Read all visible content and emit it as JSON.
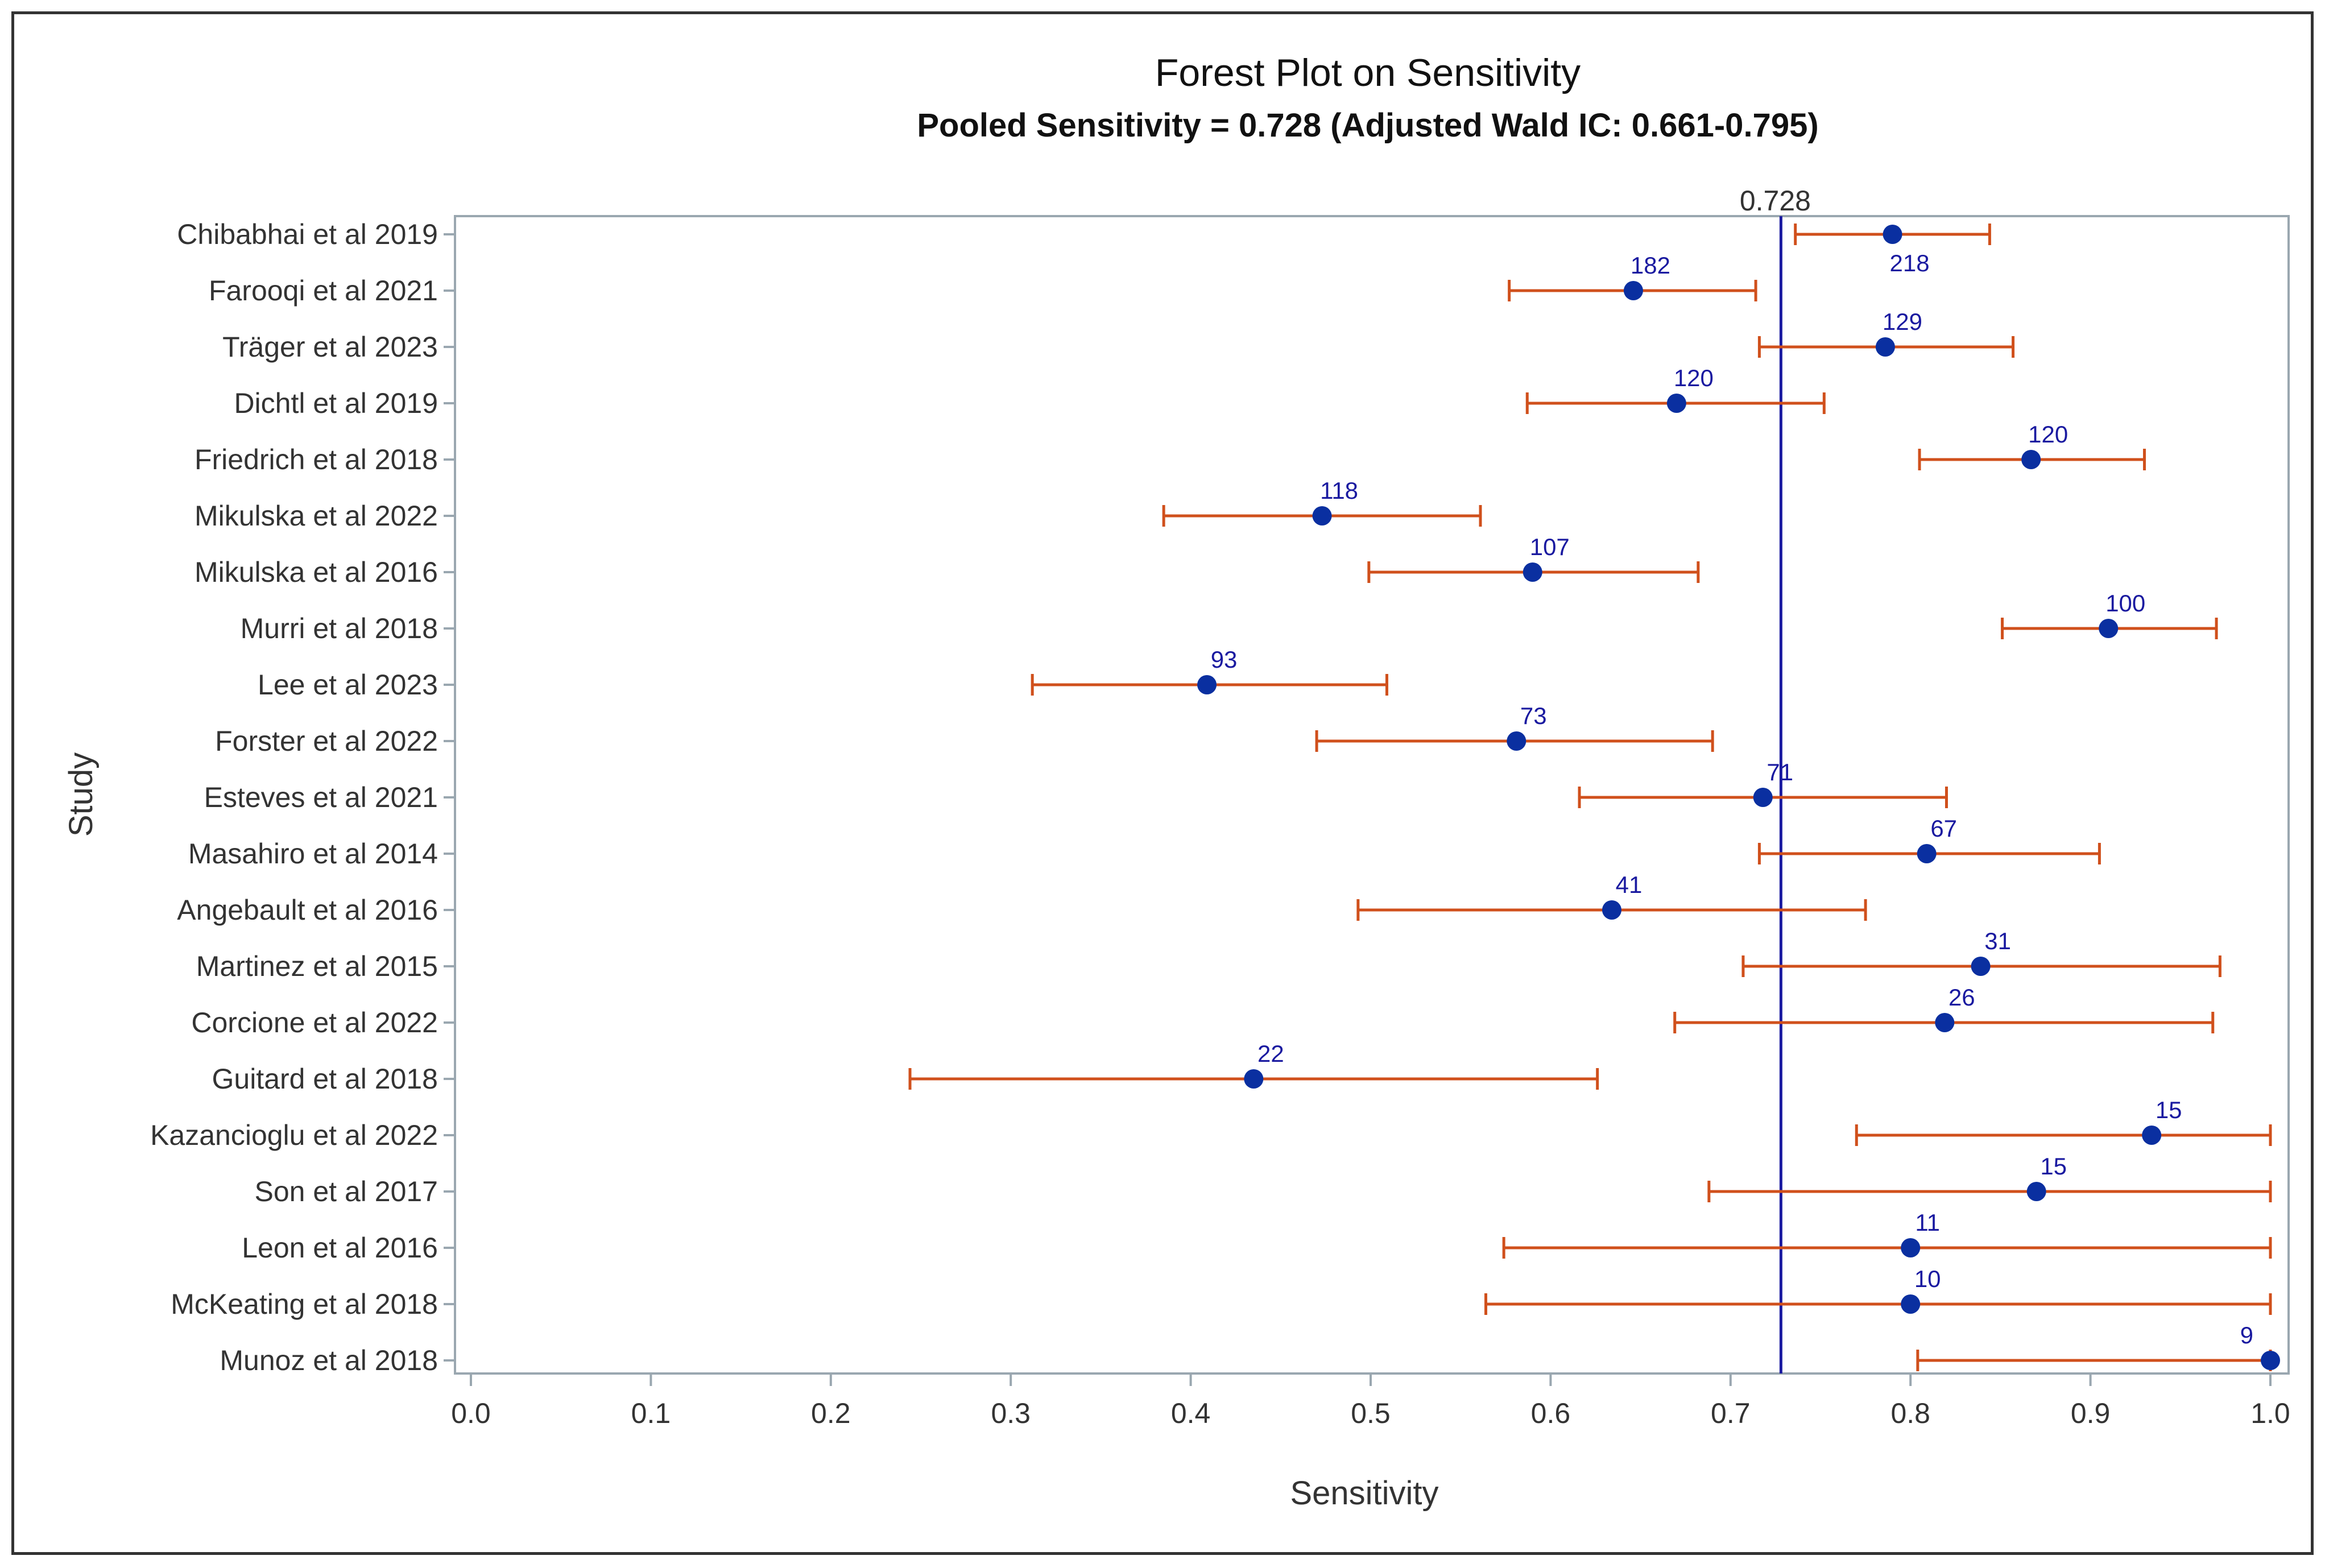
{
  "chart_data": {
    "type": "forest",
    "title": "Forest Plot on Sensitivity",
    "subtitle": "Pooled Sensitivity = 0.728 (Adjusted Wald IC: 0.661-0.795)",
    "xlabel": "Sensitivity",
    "ylabel": "Study",
    "xlim": [
      0.0,
      1.0
    ],
    "xticks": [
      "0.0",
      "0.1",
      "0.2",
      "0.3",
      "0.4",
      "0.5",
      "0.6",
      "0.7",
      "0.8",
      "0.9",
      "1.0"
    ],
    "reference_value": 0.728,
    "reference_label": "0.728",
    "colors": {
      "point": "#0a2fa0",
      "ci": "#d0501c",
      "reference": "#1a1aa0",
      "label": "#1a1aa0",
      "axis": "#9aa7b0",
      "text": "#333333"
    },
    "studies": [
      {
        "name": "Chibabhai et al 2019",
        "estimate": 0.79,
        "lower": 0.736,
        "upper": 0.844,
        "n": "218"
      },
      {
        "name": "Farooqi et al 2021",
        "estimate": 0.646,
        "lower": 0.577,
        "upper": 0.714,
        "n": "182"
      },
      {
        "name": "Träger et al 2023",
        "estimate": 0.786,
        "lower": 0.716,
        "upper": 0.857,
        "n": "129"
      },
      {
        "name": "Dichtl et al 2019",
        "estimate": 0.67,
        "lower": 0.587,
        "upper": 0.752,
        "n": "120"
      },
      {
        "name": "Friedrich et al 2018",
        "estimate": 0.867,
        "lower": 0.805,
        "upper": 0.93,
        "n": "120"
      },
      {
        "name": "Mikulska et al 2022",
        "estimate": 0.473,
        "lower": 0.385,
        "upper": 0.561,
        "n": "118"
      },
      {
        "name": "Mikulska et al 2016",
        "estimate": 0.59,
        "lower": 0.499,
        "upper": 0.682,
        "n": "107"
      },
      {
        "name": "Murri et al 2018",
        "estimate": 0.91,
        "lower": 0.851,
        "upper": 0.97,
        "n": "100"
      },
      {
        "name": "Lee et al 2023",
        "estimate": 0.409,
        "lower": 0.312,
        "upper": 0.509,
        "n": "93"
      },
      {
        "name": "Forster et al 2022",
        "estimate": 0.581,
        "lower": 0.47,
        "upper": 0.69,
        "n": "73"
      },
      {
        "name": "Esteves et al 2021",
        "estimate": 0.718,
        "lower": 0.616,
        "upper": 0.82,
        "n": "71"
      },
      {
        "name": "Masahiro et al 2014",
        "estimate": 0.809,
        "lower": 0.716,
        "upper": 0.905,
        "n": "67"
      },
      {
        "name": "Angebault et al 2016",
        "estimate": 0.634,
        "lower": 0.493,
        "upper": 0.775,
        "n": "41"
      },
      {
        "name": "Martinez et al 2015",
        "estimate": 0.839,
        "lower": 0.707,
        "upper": 0.972,
        "n": "31"
      },
      {
        "name": "Corcione et al 2022",
        "estimate": 0.819,
        "lower": 0.669,
        "upper": 0.968,
        "n": "26"
      },
      {
        "name": "Guitard et al 2018",
        "estimate": 0.435,
        "lower": 0.244,
        "upper": 0.626,
        "n": "22"
      },
      {
        "name": "Kazancioglu et al 2022",
        "estimate": 0.934,
        "lower": 0.77,
        "upper": 1.0,
        "n": "15"
      },
      {
        "name": "Son et al 2017",
        "estimate": 0.87,
        "lower": 0.688,
        "upper": 1.0,
        "n": "15"
      },
      {
        "name": "Leon et al 2016",
        "estimate": 0.8,
        "lower": 0.574,
        "upper": 1.0,
        "n": "11"
      },
      {
        "name": "McKeating et al 2018",
        "estimate": 0.8,
        "lower": 0.564,
        "upper": 1.0,
        "n": "10"
      },
      {
        "name": "Munoz et al 2018",
        "estimate": 1.0,
        "lower": 0.804,
        "upper": 1.0,
        "n": "9"
      }
    ]
  }
}
